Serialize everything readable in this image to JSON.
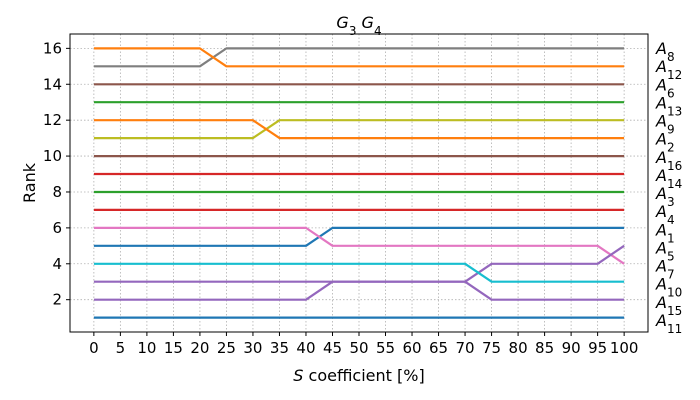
{
  "chart_data": {
    "type": "line",
    "title": {
      "parts": [
        {
          "t": "G",
          "i": true
        },
        {
          "t": "3",
          "sub": true
        },
        {
          "t": " "
        },
        {
          "t": "G",
          "i": true
        },
        {
          "t": "4",
          "sub": true
        }
      ]
    },
    "xlabel": {
      "parts": [
        {
          "t": "S",
          "i": true
        },
        {
          "t": " coefficient [%]"
        }
      ]
    },
    "ylabel": "Rank",
    "xlim": [
      -4.5,
      104.5
    ],
    "ylim": [
      0.2,
      16.8
    ],
    "xticks": [
      0,
      5,
      10,
      15,
      20,
      25,
      30,
      35,
      40,
      45,
      50,
      55,
      60,
      65,
      70,
      75,
      80,
      85,
      90,
      95,
      100
    ],
    "yticks": [
      2,
      4,
      6,
      8,
      10,
      12,
      14,
      16
    ],
    "grid": true,
    "x": [
      0,
      5,
      10,
      15,
      20,
      25,
      30,
      35,
      40,
      45,
      50,
      55,
      60,
      65,
      70,
      75,
      80,
      85,
      90,
      95,
      100
    ],
    "series": [
      {
        "label": "8",
        "color": "#7f7f7f",
        "values": [
          15,
          15,
          15,
          15,
          15,
          16,
          16,
          16,
          16,
          16,
          16,
          16,
          16,
          16,
          16,
          16,
          16,
          16,
          16,
          16,
          16
        ]
      },
      {
        "label": "12",
        "color": "#ff7f0e",
        "values": [
          16,
          16,
          16,
          16,
          16,
          15,
          15,
          15,
          15,
          15,
          15,
          15,
          15,
          15,
          15,
          15,
          15,
          15,
          15,
          15,
          15
        ]
      },
      {
        "label": "6",
        "color": "#8c564b",
        "values": [
          14,
          14,
          14,
          14,
          14,
          14,
          14,
          14,
          14,
          14,
          14,
          14,
          14,
          14,
          14,
          14,
          14,
          14,
          14,
          14,
          14
        ]
      },
      {
        "label": "13",
        "color": "#2ca02c",
        "values": [
          13,
          13,
          13,
          13,
          13,
          13,
          13,
          13,
          13,
          13,
          13,
          13,
          13,
          13,
          13,
          13,
          13,
          13,
          13,
          13,
          13
        ]
      },
      {
        "label": "9",
        "color": "#bcbd22",
        "values": [
          11,
          11,
          11,
          11,
          11,
          11,
          11,
          12,
          12,
          12,
          12,
          12,
          12,
          12,
          12,
          12,
          12,
          12,
          12,
          12,
          12
        ]
      },
      {
        "label": "2",
        "color": "#ff7f0e",
        "values": [
          12,
          12,
          12,
          12,
          12,
          12,
          12,
          11,
          11,
          11,
          11,
          11,
          11,
          11,
          11,
          11,
          11,
          11,
          11,
          11,
          11
        ]
      },
      {
        "label": "16",
        "color": "#8c564b",
        "values": [
          10,
          10,
          10,
          10,
          10,
          10,
          10,
          10,
          10,
          10,
          10,
          10,
          10,
          10,
          10,
          10,
          10,
          10,
          10,
          10,
          10
        ]
      },
      {
        "label": "14",
        "color": "#d62728",
        "values": [
          9,
          9,
          9,
          9,
          9,
          9,
          9,
          9,
          9,
          9,
          9,
          9,
          9,
          9,
          9,
          9,
          9,
          9,
          9,
          9,
          9
        ]
      },
      {
        "label": "3",
        "color": "#2ca02c",
        "values": [
          8,
          8,
          8,
          8,
          8,
          8,
          8,
          8,
          8,
          8,
          8,
          8,
          8,
          8,
          8,
          8,
          8,
          8,
          8,
          8,
          8
        ]
      },
      {
        "label": "4",
        "color": "#d62728",
        "values": [
          7,
          7,
          7,
          7,
          7,
          7,
          7,
          7,
          7,
          7,
          7,
          7,
          7,
          7,
          7,
          7,
          7,
          7,
          7,
          7,
          7
        ]
      },
      {
        "label": "1",
        "color": "#1f77b4",
        "values": [
          5,
          5,
          5,
          5,
          5,
          5,
          5,
          5,
          5,
          6,
          6,
          6,
          6,
          6,
          6,
          6,
          6,
          6,
          6,
          6,
          6
        ]
      },
      {
        "label": "5",
        "color": "#e377c2",
        "values": [
          6,
          6,
          6,
          6,
          6,
          6,
          6,
          6,
          6,
          5,
          5,
          5,
          5,
          5,
          5,
          5,
          5,
          5,
          5,
          5,
          4
        ]
      },
      {
        "label": "7",
        "color": "#9467bd",
        "values": [
          3,
          3,
          3,
          3,
          3,
          3,
          3,
          3,
          3,
          3,
          3,
          3,
          3,
          3,
          3,
          4,
          4,
          4,
          4,
          4,
          5
        ]
      },
      {
        "label": "10",
        "color": "#17becf",
        "values": [
          4,
          4,
          4,
          4,
          4,
          4,
          4,
          4,
          4,
          4,
          4,
          4,
          4,
          4,
          4,
          3,
          3,
          3,
          3,
          3,
          3
        ]
      },
      {
        "label": "15",
        "color": "#9467bd",
        "values": [
          2,
          2,
          2,
          2,
          2,
          2,
          2,
          2,
          2,
          3,
          3,
          3,
          3,
          3,
          3,
          2,
          2,
          2,
          2,
          2,
          2
        ]
      },
      {
        "label": "11",
        "color": "#1f77b4",
        "values": [
          1,
          1,
          1,
          1,
          1,
          1,
          1,
          1,
          1,
          1,
          1,
          1,
          1,
          1,
          1,
          1,
          1,
          1,
          1,
          1,
          1
        ]
      }
    ],
    "series_prefix": "A"
  }
}
